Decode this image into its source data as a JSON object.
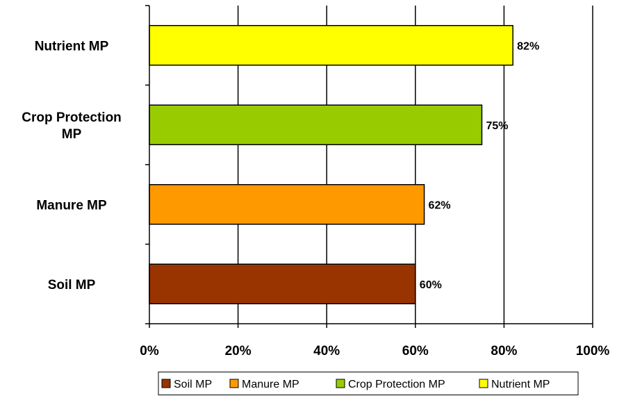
{
  "chart_data": {
    "type": "bar",
    "orientation": "horizontal",
    "categories": [
      "Soil MP",
      "Manure MP",
      "Crop Protection MP",
      "Nutrient MP"
    ],
    "category_label_lines": [
      [
        "Soil MP"
      ],
      [
        "Manure MP"
      ],
      [
        "Crop Protection",
        "MP"
      ],
      [
        "Nutrient MP"
      ]
    ],
    "values": [
      60,
      62,
      75,
      82
    ],
    "data_labels": [
      "60%",
      "62%",
      "75%",
      "82%"
    ],
    "xlim": [
      0,
      100
    ],
    "x_ticks": [
      0,
      20,
      40,
      60,
      80,
      100
    ],
    "x_tick_labels": [
      "0%",
      "20%",
      "40%",
      "60%",
      "80%",
      "100%"
    ],
    "grid": "vertical",
    "title": "",
    "xlabel": "",
    "ylabel": "",
    "legend": {
      "position": "bottom",
      "entries": [
        "Soil MP",
        "Manure MP",
        "Crop Protection MP",
        "Nutrient MP"
      ]
    },
    "colors": [
      "#993300",
      "#FF9900",
      "#99CC00",
      "#FFFF00"
    ]
  }
}
